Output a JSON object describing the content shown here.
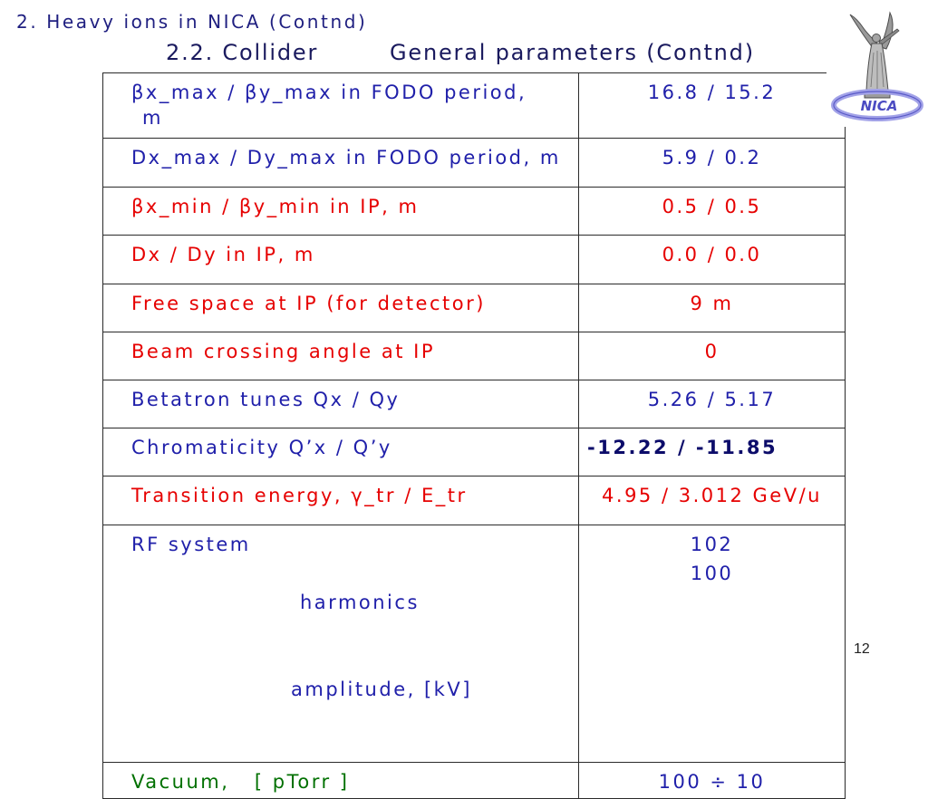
{
  "slide": {
    "title": "2. Heavy ions in NICA (Contnd)",
    "title_color": "#1f1f80",
    "subtitle_section": "2.2. Collider",
    "subtitle_topic": "General parameters (Contnd)",
    "subtitle_color": "#1a1a5e",
    "page_number": "12"
  },
  "logo": {
    "text": "NICA"
  },
  "table": {
    "rows": [
      {
        "parameter": "βx_max / βy_max in FODO period,",
        "parameter_line2": "m",
        "value": "16.8 / 15.2",
        "parameter_color": "#2020aa",
        "value_color": "#2020aa"
      },
      {
        "parameter": "Dx_max / Dy_max in FODO period, m",
        "value": "5.9 / 0.2",
        "parameter_color": "#2020aa",
        "value_color": "#2020aa"
      },
      {
        "parameter": "βx_min / βy_min in IP, m",
        "value": "0.5 / 0.5",
        "parameter_color": "#e60000",
        "value_color": "#e60000"
      },
      {
        "parameter": "Dx / Dy in IP, m",
        "value": "0.0 / 0.0",
        "parameter_color": "#e60000",
        "value_color": "#e60000"
      },
      {
        "parameter": "Free space at IP (for detector)",
        "value": "9 m",
        "parameter_color": "#e60000",
        "value_color": "#e60000"
      },
      {
        "parameter": "Beam crossing angle at IP",
        "value": "0",
        "parameter_color": "#e60000",
        "value_color": "#e60000"
      },
      {
        "parameter": "Betatron tunes Qx / Qy",
        "value": "5.26 / 5.17",
        "parameter_color": "#2020aa",
        "value_color": "#2020aa"
      },
      {
        "parameter": "Chromaticity Q’x / Q’y",
        "value": "-12.22 / -11.85",
        "parameter_color": "#2020aa",
        "value_color": "#0c0c6a"
      },
      {
        "parameter": "Transition energy, γ_tr / E_tr",
        "value": "4.95 / 3.012 GeV/u",
        "parameter_color": "#e60000",
        "value_color": "#e60000"
      },
      {
        "parameter": "RF system",
        "sub_parameters": [
          "harmonics",
          "amplitude, [kV]"
        ],
        "values": [
          "102",
          "100"
        ],
        "parameter_color": "#2020aa",
        "value_color": "#2020aa"
      },
      {
        "parameter": "Vacuum,   [ pTorr ]",
        "value": "100 ÷ 10",
        "parameter_color": "#007000",
        "value_color": "#2020aa"
      }
    ]
  }
}
